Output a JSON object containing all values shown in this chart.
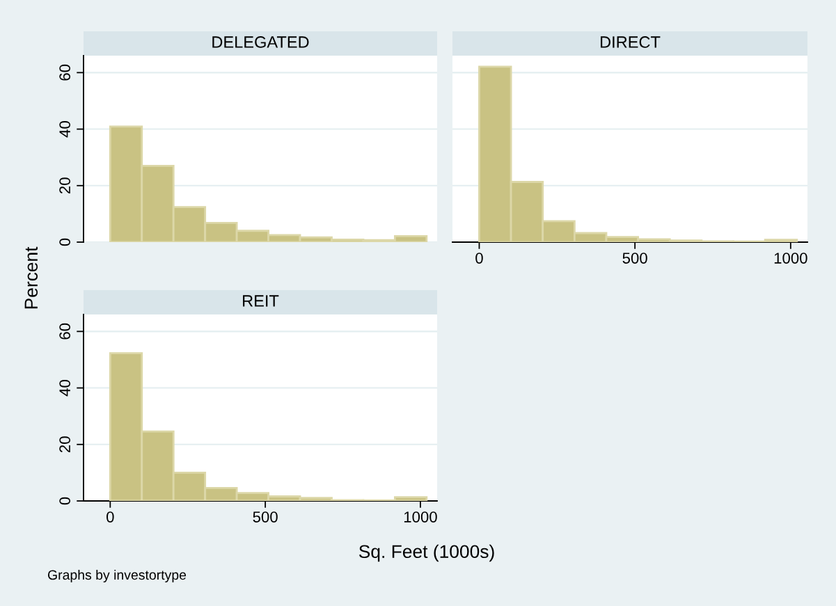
{
  "chart_data": [
    {
      "type": "histogram",
      "title": "DELEGATED",
      "ylabel": "Percent",
      "bins": [
        0,
        102,
        204,
        306,
        408,
        510,
        612,
        714,
        816,
        918,
        1020
      ],
      "values": [
        40.9,
        27.0,
        12.4,
        6.8,
        4.0,
        2.5,
        1.7,
        0.9,
        0.7,
        2.1
      ],
      "color": "#c9c283",
      "xlim": [
        -86,
        1054
      ],
      "ylim": [
        0,
        66
      ],
      "xticks": [
        0,
        500,
        1000
      ],
      "yticks": [
        0,
        20,
        40,
        60
      ],
      "grid": "y",
      "tick_labels": "y"
    },
    {
      "type": "histogram",
      "title": "DIRECT",
      "bins": [
        0,
        102,
        204,
        306,
        408,
        510,
        612,
        714,
        816,
        918,
        1020
      ],
      "values": [
        62.1,
        21.3,
        7.4,
        3.2,
        1.8,
        1.0,
        0.6,
        0.3,
        0.2,
        0.8
      ],
      "color": "#c9c283",
      "xlim": [
        -86,
        1054
      ],
      "ylim": [
        0,
        66
      ],
      "xticks": [
        0,
        500,
        1000
      ],
      "yticks": [
        0,
        20,
        40,
        60
      ],
      "grid": "y",
      "tick_labels": "x"
    },
    {
      "type": "histogram",
      "title": "REIT",
      "xlabel": "Sq. Feet (1000s)",
      "annotations": [
        "Graphs by investortype"
      ],
      "bins": [
        0,
        102,
        204,
        306,
        408,
        510,
        612,
        714,
        816,
        918,
        1020
      ],
      "values": [
        52.3,
        24.6,
        10.0,
        4.6,
        2.8,
        1.6,
        1.1,
        0.3,
        0.2,
        1.3
      ],
      "color": "#c9c283",
      "xlim": [
        -86,
        1054
      ],
      "ylim": [
        0,
        66
      ],
      "xticks": [
        0,
        500,
        1000
      ],
      "yticks": [
        0,
        20,
        40,
        60
      ],
      "grid": "y"
    }
  ]
}
